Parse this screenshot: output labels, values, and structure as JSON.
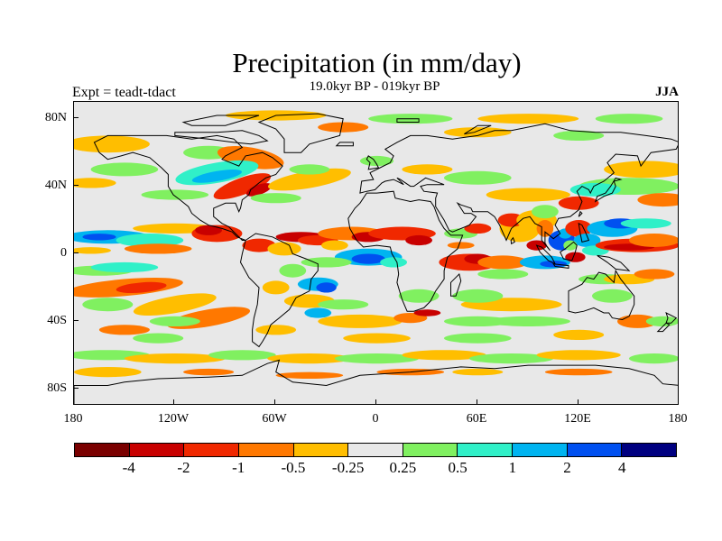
{
  "title": "Precipitation (in mm/day)",
  "subtitle": "19.0kyr BP - 019kyr BP",
  "left_label": "Expt = teadt-tdact",
  "right_label": "JJA",
  "y_axis": {
    "ticks": [
      "80N",
      "40N",
      "0",
      "40S",
      "80S"
    ]
  },
  "x_axis": {
    "ticks": [
      "180",
      "120W",
      "60W",
      "0",
      "60E",
      "120E",
      "180"
    ]
  },
  "colorbar": {
    "colors": [
      "#7a0000",
      "#c80000",
      "#f02800",
      "#ff7800",
      "#ffbe00",
      "#e8e8e8",
      "#80f060",
      "#30f0c8",
      "#00b4f0",
      "#0050f0",
      "#000080"
    ],
    "labels": [
      "-4",
      "-2",
      "-1",
      "-0.5",
      "-0.25",
      "0.25",
      "0.5",
      "1",
      "2",
      "4"
    ]
  },
  "map_colors": {
    "ocean_bg": "#e8e8e8",
    "coast": "#000000"
  }
}
